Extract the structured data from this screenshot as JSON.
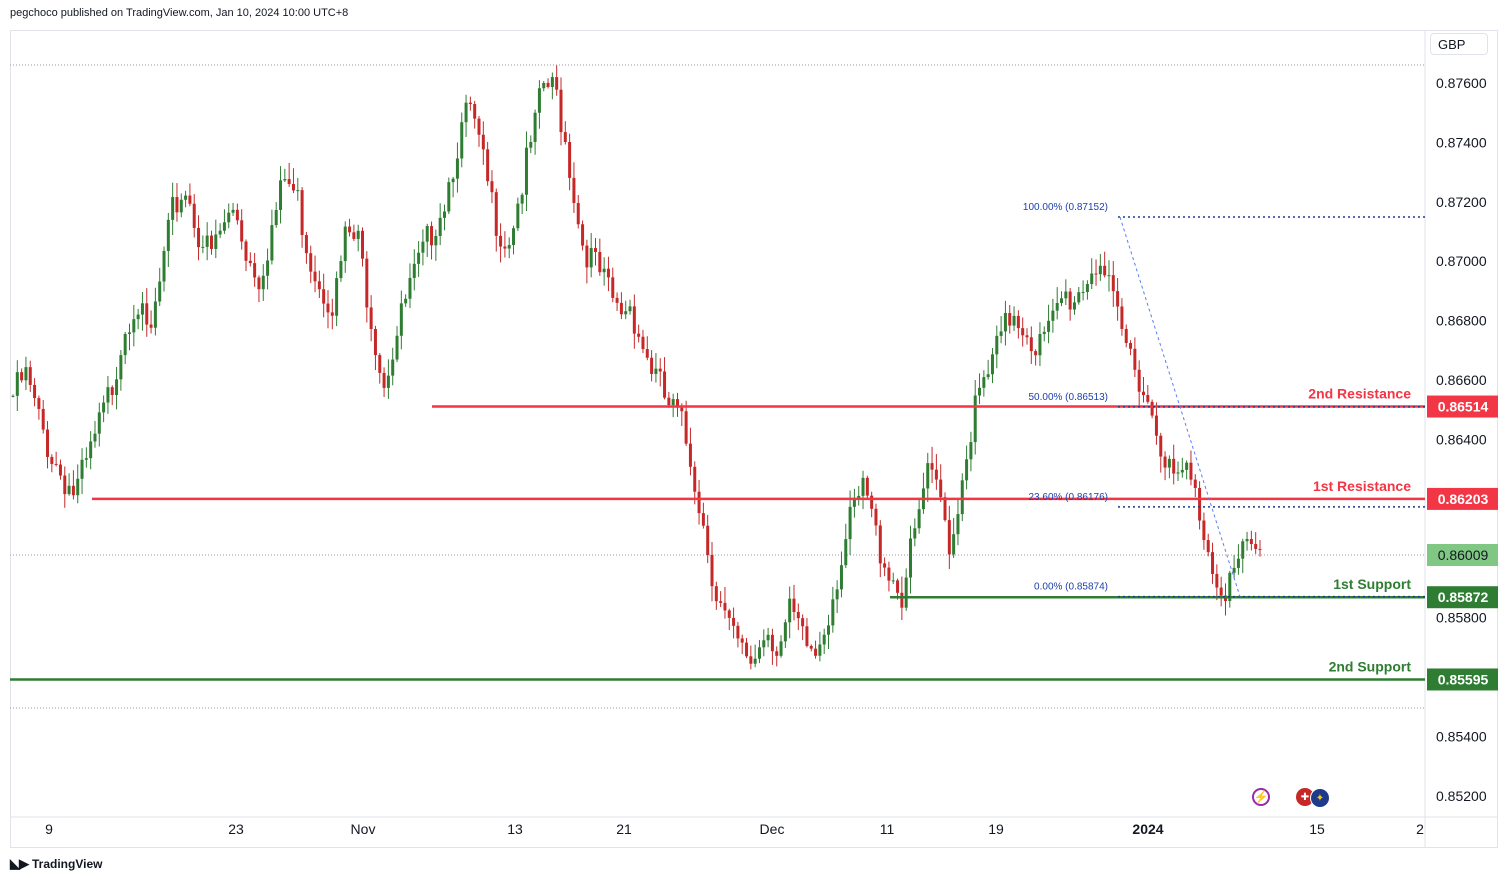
{
  "header": {
    "publish_text": "pegchoco published on TradingView.com, Jan 10, 2024 10:00 UTC+8"
  },
  "currency_label": "GBP",
  "footer": {
    "brand": "TradingView"
  },
  "icons": [
    "lightning-icon",
    "uk-flag-icon",
    "eu-flag-icon"
  ],
  "colors": {
    "up": "#26a69a",
    "up_body": "#2e7d32",
    "down": "#ef5350",
    "resistance": "#f23645",
    "support": "#2e7d32",
    "fib": "#2962ff",
    "current": "#81c784"
  },
  "chart_data": {
    "type": "candlestick",
    "title": "",
    "y_axis": {
      "ticks": [
        "0.87600",
        "0.87400",
        "0.87200",
        "0.87000",
        "0.86800",
        "0.86600",
        "0.86400",
        "0.85800",
        "0.85400",
        "0.85200"
      ],
      "ylim": [
        0.851,
        0.8778
      ]
    },
    "x_axis": {
      "ticks": [
        "9",
        "23",
        "Nov",
        "13",
        "21",
        "Dec",
        "11",
        "19",
        "2024",
        "15",
        "2"
      ]
    },
    "levels": [
      {
        "label": "2nd Resistance",
        "value": "0.86514",
        "kind": "resistance"
      },
      {
        "label": "1st Resistance",
        "value": "0.86203",
        "kind": "resistance"
      },
      {
        "label": "1st Support",
        "value": "0.85872",
        "kind": "support"
      },
      {
        "label": "2nd Support",
        "value": "0.85595",
        "kind": "support"
      }
    ],
    "current_price": "0.86009",
    "fib_levels": [
      {
        "label": "100.00% (0.87152)",
        "value": 0.87152
      },
      {
        "label": "50.00% (0.86513)",
        "value": 0.86513
      },
      {
        "label": "23.60% (0.86176)",
        "value": 0.86176
      },
      {
        "label": "0.00% (0.85874)",
        "value": 0.85874
      }
    ],
    "price_path": [
      0.8655,
      0.8662,
      0.8648,
      0.8636,
      0.8628,
      0.8622,
      0.8632,
      0.8645,
      0.8658,
      0.8678,
      0.8688,
      0.8672,
      0.8695,
      0.8718,
      0.8725,
      0.871,
      0.8702,
      0.8712,
      0.8718,
      0.8702,
      0.8695,
      0.8712,
      0.8728,
      0.8722,
      0.8702,
      0.8692,
      0.8686,
      0.871,
      0.8706,
      0.8682,
      0.866,
      0.8674,
      0.869,
      0.87,
      0.8712,
      0.8722,
      0.874,
      0.8752,
      0.8734,
      0.8716,
      0.8706,
      0.8722,
      0.874,
      0.876,
      0.8757,
      0.8735,
      0.8708,
      0.87,
      0.8692,
      0.8683,
      0.8686,
      0.8672,
      0.8662,
      0.8652,
      0.8647,
      0.8632,
      0.861,
      0.8588,
      0.8576,
      0.8568,
      0.8566,
      0.8578,
      0.857,
      0.8582,
      0.8572,
      0.8568,
      0.8582,
      0.8599,
      0.8615,
      0.8624,
      0.8606,
      0.8596,
      0.8588,
      0.8607,
      0.8628,
      0.8622,
      0.8604,
      0.8632,
      0.8652,
      0.8662,
      0.8674,
      0.8684,
      0.8678,
      0.8671,
      0.8677,
      0.8688,
      0.8688,
      0.8695,
      0.8702,
      0.8686,
      0.8673,
      0.8665,
      0.8652,
      0.864,
      0.8625,
      0.863,
      0.8618,
      0.86,
      0.859,
      0.8596,
      0.8604,
      0.8601
    ]
  }
}
